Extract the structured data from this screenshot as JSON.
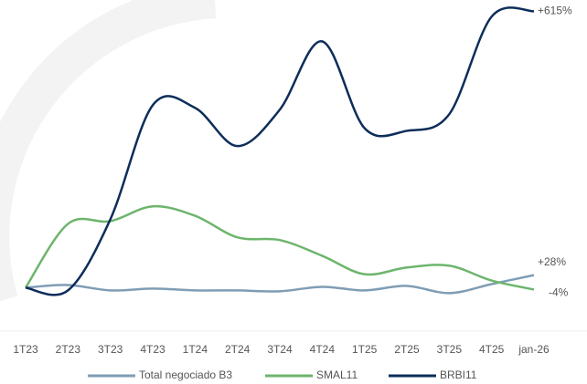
{
  "chart_data": {
    "type": "line",
    "categories": [
      "1T23",
      "2T23",
      "3T23",
      "4T23",
      "1T24",
      "2T24",
      "3T24",
      "4T24",
      "1T25",
      "2T25",
      "3T25",
      "4T25",
      "jan-26"
    ],
    "series": [
      {
        "name": "Total negociado B3",
        "color": "#7f9db5",
        "values": [
          0,
          6,
          -6,
          -2,
          -6,
          -6,
          -8,
          2,
          -6,
          4,
          -12,
          8,
          28
        ],
        "value_labels": [
          null,
          null,
          null,
          null,
          null,
          null,
          null,
          null,
          null,
          null,
          null,
          null,
          "+28%"
        ]
      },
      {
        "name": "SMAL11",
        "color": "#6db56d",
        "values": [
          0,
          142,
          148,
          181,
          160,
          112,
          106,
          71,
          30,
          45,
          49,
          16,
          -4
        ],
        "value_labels": [
          null,
          null,
          null,
          null,
          null,
          null,
          null,
          null,
          null,
          null,
          null,
          null,
          "-4%"
        ]
      },
      {
        "name": "BRBI11",
        "color": "#0d2d5a",
        "values": [
          0,
          -6,
          152,
          406,
          400,
          315,
          396,
          548,
          355,
          349,
          386,
          603,
          615
        ],
        "value_labels": [
          null,
          null,
          null,
          null,
          null,
          null,
          null,
          null,
          null,
          null,
          null,
          null,
          "+615%"
        ]
      }
    ],
    "ylim": [
      -60,
      640
    ],
    "legend": "bottom"
  }
}
